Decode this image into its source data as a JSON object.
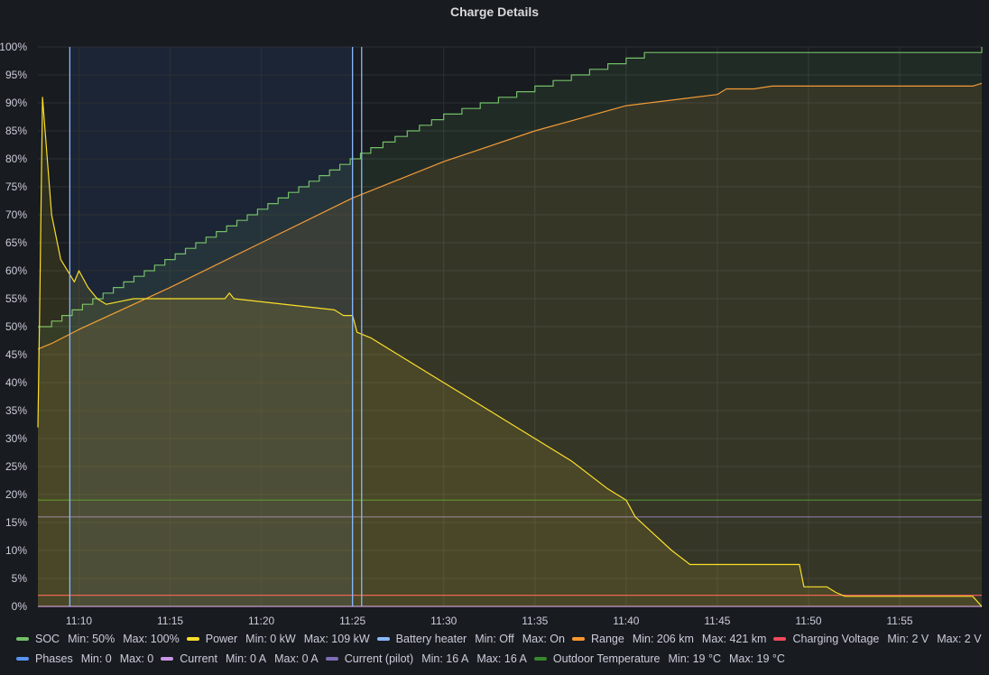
{
  "panel": {
    "title": "Charge Details"
  },
  "chart_data": {
    "type": "line",
    "title": "Charge Details",
    "x_unit": "time",
    "x_range": [
      "11:07:45",
      "11:59:30"
    ],
    "x_ticks": [
      "11:10",
      "11:15",
      "11:20",
      "11:25",
      "11:30",
      "11:35",
      "11:40",
      "11:45",
      "11:50",
      "11:55"
    ],
    "y_range": [
      0,
      100
    ],
    "y_ticks": [
      "0%",
      "5%",
      "10%",
      "15%",
      "20%",
      "25%",
      "30%",
      "35%",
      "40%",
      "45%",
      "50%",
      "55%",
      "60%",
      "65%",
      "70%",
      "75%",
      "80%",
      "85%",
      "90%",
      "95%",
      "100%"
    ],
    "grid": true,
    "legend_placement": "bottom",
    "highlight_region": {
      "x_start": "11:09:30",
      "x_end": "11:25:00"
    },
    "vertical_markers": [
      "11:09:30",
      "11:25:00",
      "11:25:30"
    ],
    "series": [
      {
        "name": "SOC",
        "color": "#73bf69",
        "fill": true,
        "step": true,
        "points": [
          [
            "11:07:45",
            50
          ],
          [
            "11:08:30",
            51
          ],
          [
            "11:26:00",
            82
          ],
          [
            "11:30:00",
            88
          ],
          [
            "11:35:00",
            93
          ],
          [
            "11:40:00",
            98
          ],
          [
            "11:41:00",
            99
          ],
          [
            "11:50:00",
            99
          ],
          [
            "11:59:00",
            99
          ],
          [
            "11:59:30",
            100
          ]
        ],
        "stats": {
          "Min": "50%",
          "Max": "100%"
        }
      },
      {
        "name": "Power",
        "color": "#fade2a",
        "fill": true,
        "step": false,
        "points": [
          [
            "11:07:45",
            32
          ],
          [
            "11:07:50",
            50
          ],
          [
            "11:08:00",
            91
          ],
          [
            "11:08:30",
            70
          ],
          [
            "11:09:00",
            62
          ],
          [
            "11:09:45",
            58
          ],
          [
            "11:10:00",
            60
          ],
          [
            "11:10:30",
            57
          ],
          [
            "11:11:00",
            55
          ],
          [
            "11:11:30",
            54
          ],
          [
            "11:13:00",
            55
          ],
          [
            "11:18:00",
            55
          ],
          [
            "11:18:15",
            56
          ],
          [
            "11:18:30",
            55
          ],
          [
            "11:24:00",
            53
          ],
          [
            "11:24:30",
            52
          ],
          [
            "11:25:00",
            52
          ],
          [
            "11:25:15",
            49
          ],
          [
            "11:26:00",
            48
          ],
          [
            "11:27:30",
            45
          ],
          [
            "11:29:00",
            42
          ],
          [
            "11:30:00",
            40
          ],
          [
            "11:32:00",
            36
          ],
          [
            "11:35:00",
            30
          ],
          [
            "11:37:00",
            26
          ],
          [
            "11:39:00",
            21
          ],
          [
            "11:40:00",
            19
          ],
          [
            "11:40:30",
            16
          ],
          [
            "11:41:30",
            13
          ],
          [
            "11:42:30",
            10
          ],
          [
            "11:43:30",
            7.5
          ],
          [
            "11:49:30",
            7.5
          ],
          [
            "11:49:45",
            3.5
          ],
          [
            "11:51:00",
            3.5
          ],
          [
            "11:51:30",
            2.5
          ],
          [
            "11:52:00",
            1.8
          ],
          [
            "11:59:00",
            1.8
          ],
          [
            "11:59:30",
            0
          ]
        ],
        "stats": {
          "Min": "0 kW",
          "Max": "109 kW"
        }
      },
      {
        "name": "Battery heater",
        "color": "#8ab8ff",
        "fill": false,
        "step": true,
        "points": [],
        "stats": {
          "Min": "Off",
          "Max": "On"
        }
      },
      {
        "name": "Range",
        "color": "#ff9830",
        "fill": true,
        "step": false,
        "points": [
          [
            "11:07:45",
            46
          ],
          [
            "11:08:30",
            47
          ],
          [
            "11:10:00",
            49.5
          ],
          [
            "11:15:00",
            57
          ],
          [
            "11:20:00",
            65
          ],
          [
            "11:25:00",
            73
          ],
          [
            "11:30:00",
            79.5
          ],
          [
            "11:35:00",
            85
          ],
          [
            "11:40:00",
            89.5
          ],
          [
            "11:45:00",
            91.5
          ],
          [
            "11:45:30",
            92.5
          ],
          [
            "11:47:00",
            92.5
          ],
          [
            "11:48:00",
            93
          ],
          [
            "11:50:00",
            93
          ],
          [
            "11:59:00",
            93
          ],
          [
            "11:59:30",
            93.5
          ]
        ],
        "stats": {
          "Min": "206 km",
          "Max": "421 km"
        }
      },
      {
        "name": "Charging Voltage",
        "color": "#f2495c",
        "fill": false,
        "step": true,
        "points": [
          [
            "11:07:45",
            2
          ],
          [
            "11:59:30",
            2
          ]
        ],
        "stats": {
          "Min": "2 V",
          "Max": "2 V"
        }
      },
      {
        "name": "Phases",
        "color": "#5794f2",
        "fill": false,
        "step": true,
        "points": [],
        "stats": {
          "Min": "0",
          "Max": "0"
        }
      },
      {
        "name": "Current",
        "color": "#ca95e5",
        "fill": false,
        "step": true,
        "points": [
          [
            "11:07:45",
            0
          ],
          [
            "11:59:30",
            0
          ]
        ],
        "stats": {
          "Min": "0 A",
          "Max": "0 A"
        }
      },
      {
        "name": "Current (pilot)",
        "color": "#806eb7",
        "fill": false,
        "step": true,
        "points": [
          [
            "11:07:45",
            16
          ],
          [
            "11:59:30",
            16
          ]
        ],
        "stats": {
          "Min": "16 A",
          "Max": "16 A"
        }
      },
      {
        "name": "Outdoor Temperature",
        "color": "#37872d",
        "fill": false,
        "step": true,
        "points": [
          [
            "11:07:45",
            19
          ],
          [
            "11:59:30",
            19
          ]
        ],
        "stats": {
          "Min": "19 °C",
          "Max": "19 °C"
        }
      }
    ]
  }
}
